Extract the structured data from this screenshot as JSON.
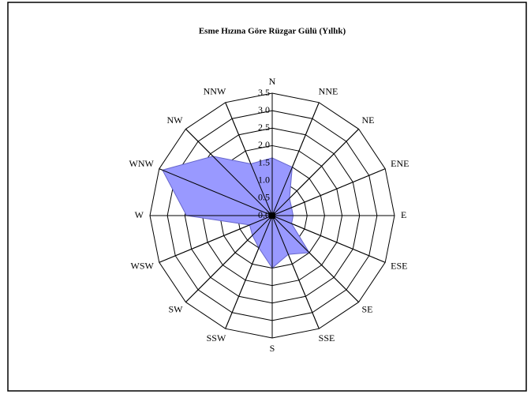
{
  "chart_data": {
    "type": "radar",
    "title": "Esme Hızına Göre Rüzgar Gülü (Yıllık)",
    "categories": [
      "N",
      "NNE",
      "NE",
      "ENE",
      "E",
      "ESE",
      "SE",
      "SSE",
      "S",
      "SSW",
      "SW",
      "WSW",
      "W",
      "WNW",
      "NW",
      "NNW"
    ],
    "values": [
      1.65,
      1.5,
      0.7,
      0.6,
      0.6,
      0.6,
      1.5,
      1.2,
      1.5,
      1.0,
      0.8,
      0.7,
      2.45,
      3.4,
      2.4,
      1.6
    ],
    "color": "#9999ff",
    "ylim": [
      0,
      3.5
    ],
    "yticks": [
      {
        "value": 0,
        "label": "0.0"
      },
      0.5,
      {
        "value": 1,
        "label": "1.0"
      },
      1.5,
      {
        "value": 2,
        "label": "2.0"
      },
      2.5,
      {
        "value": 3,
        "label": "3.0"
      },
      3.5
    ]
  }
}
